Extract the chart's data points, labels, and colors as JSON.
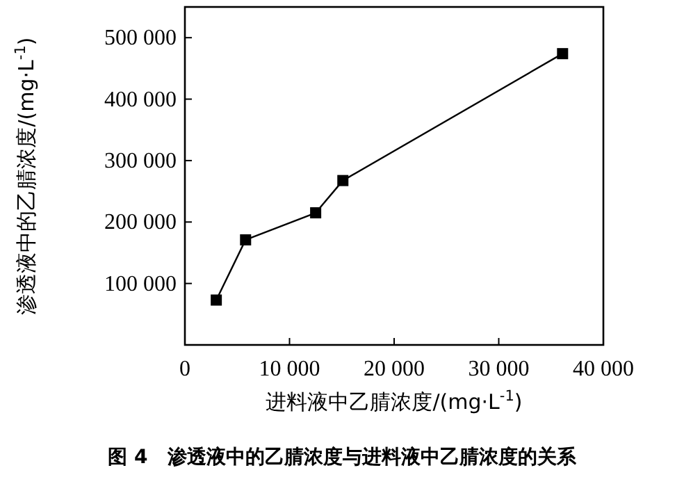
{
  "chart_data": {
    "type": "line",
    "title": "图 4　渗透液中的乙腈浓度与进料液中乙腈浓度的关系",
    "xlabel": "进料液中乙腈浓度/(mg·L$^{-1}$)",
    "ylabel": "渗透液中的乙腈浓度/(mg·L$^{-1}$)",
    "x": [
      3000,
      5800,
      12500,
      15100,
      36100
    ],
    "values": [
      73000,
      171000,
      215000,
      267500,
      474000
    ],
    "color": "#000000",
    "marker": "square",
    "line_style": "solid",
    "xlim": [
      0,
      40000
    ],
    "ylim": [
      0,
      550000
    ],
    "xticks": [
      0,
      {
        "value": 10000,
        "label": "10 000"
      },
      {
        "value": 20000,
        "label": "20 000"
      },
      {
        "value": 30000,
        "label": "30 000"
      },
      {
        "value": 40000,
        "label": "40 000"
      }
    ],
    "yticks": [
      {
        "value": 100000,
        "label": "100 000"
      },
      {
        "value": 200000,
        "label": "200 000"
      },
      {
        "value": 300000,
        "label": "300 000"
      },
      {
        "value": 400000,
        "label": "400 000"
      },
      {
        "value": 500000,
        "label": "500 000"
      }
    ]
  }
}
